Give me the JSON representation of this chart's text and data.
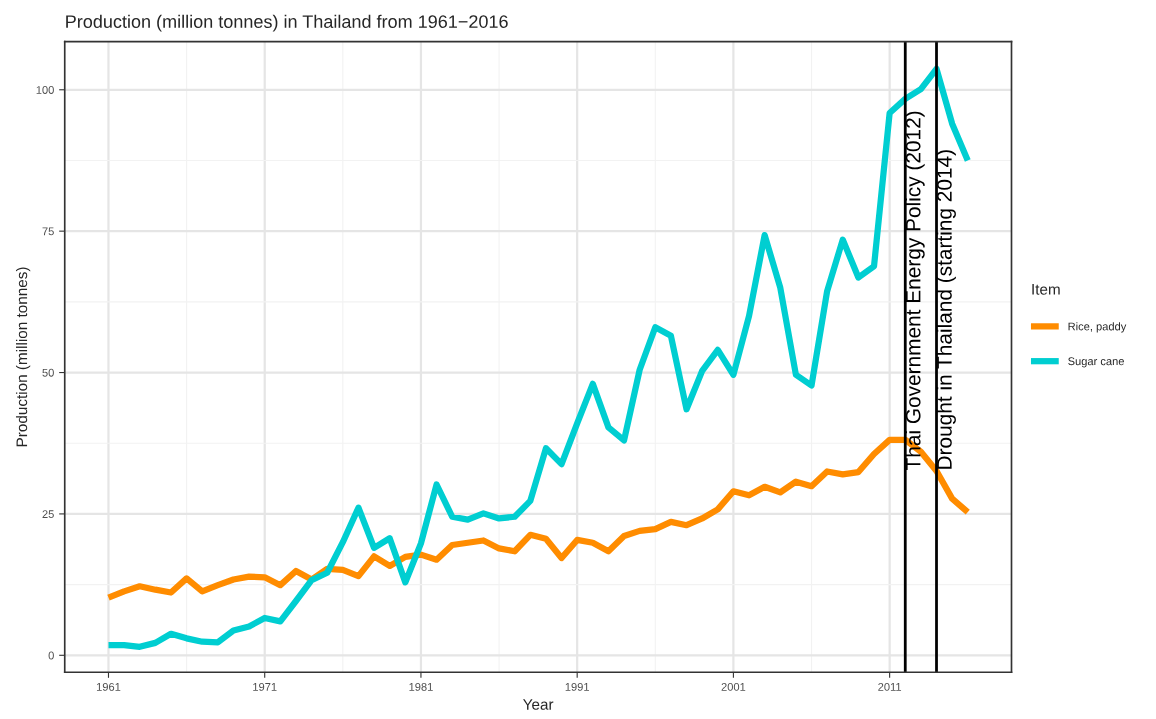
{
  "chart_data": {
    "type": "line",
    "title": "Production (million tonnes) in Thailand from 1961−2016",
    "xlabel": "Year",
    "ylabel": "Production (million tonnes)",
    "legend_title": "Item",
    "x": [
      1961,
      1962,
      1963,
      1964,
      1965,
      1966,
      1967,
      1968,
      1969,
      1970,
      1971,
      1972,
      1973,
      1974,
      1975,
      1976,
      1977,
      1978,
      1979,
      1980,
      1981,
      1982,
      1983,
      1984,
      1985,
      1986,
      1987,
      1988,
      1989,
      1990,
      1991,
      1992,
      1993,
      1994,
      1995,
      1996,
      1997,
      1998,
      1999,
      2000,
      2001,
      2002,
      2003,
      2004,
      2005,
      2006,
      2007,
      2008,
      2009,
      2010,
      2011,
      2012,
      2013,
      2014,
      2015,
      2016
    ],
    "series": [
      {
        "name": "Rice, paddy",
        "color": "#ff8c00",
        "values": [
          10.2,
          11.3,
          12.2,
          11.6,
          11.1,
          13.6,
          11.3,
          12.4,
          13.4,
          13.9,
          13.8,
          12.4,
          14.9,
          13.4,
          15.3,
          15.1,
          14.0,
          17.5,
          15.8,
          17.4,
          17.8,
          16.9,
          19.5,
          19.9,
          20.3,
          18.9,
          18.4,
          21.3,
          20.6,
          17.2,
          20.4,
          19.9,
          18.4,
          21.1,
          22.0,
          22.3,
          23.6,
          23.0,
          24.2,
          25.8,
          29.0,
          28.3,
          29.8,
          28.8,
          30.7,
          29.9,
          32.5,
          32.0,
          32.4,
          35.6,
          38.1,
          38.1,
          36.0,
          32.6,
          27.7,
          25.3
        ]
      },
      {
        "name": "Sugar cane",
        "color": "#00ced1",
        "values": [
          1.8,
          1.8,
          1.5,
          2.2,
          3.8,
          3.0,
          2.4,
          2.3,
          4.4,
          5.1,
          6.6,
          6.0,
          9.6,
          13.3,
          14.6,
          20.0,
          26.1,
          19.0,
          20.7,
          12.9,
          19.8,
          30.2,
          24.5,
          24.0,
          25.1,
          24.2,
          24.5,
          27.3,
          36.6,
          33.8,
          41.0,
          48.0,
          40.3,
          38.0,
          50.5,
          58.0,
          56.5,
          43.5,
          50.3,
          54.0,
          49.6,
          60.0,
          74.3,
          65.0,
          49.6,
          47.7,
          64.4,
          73.5,
          66.8,
          68.8,
          95.9,
          98.4,
          100.1,
          103.7,
          94.0,
          87.5
        ]
      }
    ],
    "xlim": [
      1958.2,
      2018.8
    ],
    "ylim": [
      -3,
      108.5
    ],
    "xticks": [
      1961,
      1971,
      1981,
      1991,
      2001,
      2011
    ],
    "yticks": [
      0,
      25,
      50,
      75,
      100
    ],
    "ref_lines": [
      {
        "axis": "x",
        "value": 2012,
        "label": "Thai Government Energy Policy (2012)",
        "color": "#000000"
      },
      {
        "axis": "x",
        "value": 2014,
        "label": "Drought in Thailand (starting 2014)",
        "color": "#000000"
      }
    ],
    "grid": true,
    "legend": "right",
    "marker": "none",
    "line_style": "solid"
  }
}
